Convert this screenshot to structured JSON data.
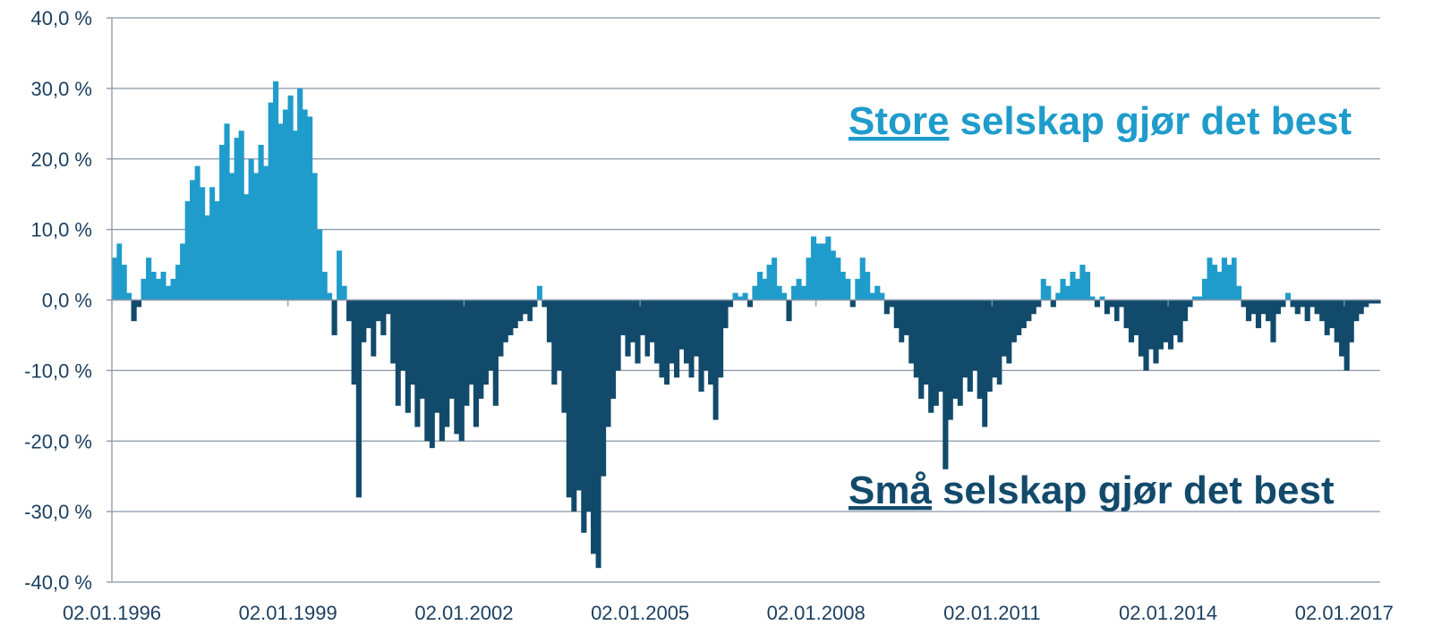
{
  "chart_data": {
    "type": "area",
    "annotations": [
      {
        "underlined": "Store",
        "text": "selskap gjør det best",
        "color": "#1f9ccb"
      },
      {
        "underlined": "Små",
        "text": "selskap gjør det best",
        "color": "#124a6b"
      }
    ],
    "colors": {
      "positive": "#1f9ccb",
      "negative": "#124a6b"
    },
    "grid": true,
    "xlim": [
      "1996-01-02",
      "2017-08-14"
    ],
    "xticks": [
      {
        "value": "1996-01-02",
        "label": "02.01.1996"
      },
      {
        "value": "1999-01-02",
        "label": "02.01.1999"
      },
      {
        "value": "2002-01-02",
        "label": "02.01.2002"
      },
      {
        "value": "2005-01-02",
        "label": "02.01.2005"
      },
      {
        "value": "2008-01-02",
        "label": "02.01.2008"
      },
      {
        "value": "2011-01-02",
        "label": "02.01.2011"
      },
      {
        "value": "2014-01-02",
        "label": "02.01.2014"
      },
      {
        "value": "2017-01-02",
        "label": "02.01.2017"
      }
    ],
    "ylim": [
      -40,
      40
    ],
    "yticks": [
      {
        "value": 40,
        "label": "40,0 %"
      },
      {
        "value": 30,
        "label": "30,0 %"
      },
      {
        "value": 20,
        "label": "20,0 %"
      },
      {
        "value": 10,
        "label": "10,0 %"
      },
      {
        "value": 0,
        "label": "0,0 %"
      },
      {
        "value": -10,
        "label": "-10,0 %"
      },
      {
        "value": -20,
        "label": "-20,0 %"
      },
      {
        "value": -30,
        "label": "-30,0 %"
      },
      {
        "value": -40,
        "label": "-40,0 %"
      }
    ],
    "x": [
      "1996-01-02",
      "1996-02-01",
      "1996-03-01",
      "1996-04-01",
      "1996-05-01",
      "1996-06-01",
      "1996-07-01",
      "1996-08-01",
      "1996-09-01",
      "1996-10-01",
      "1996-11-01",
      "1996-12-01",
      "1997-01-01",
      "1997-02-01",
      "1997-03-01",
      "1997-04-01",
      "1997-05-01",
      "1997-06-01",
      "1997-07-01",
      "1997-08-01",
      "1997-09-01",
      "1997-10-01",
      "1997-11-01",
      "1997-12-01",
      "1998-01-01",
      "1998-02-01",
      "1998-03-01",
      "1998-04-01",
      "1998-05-01",
      "1998-06-01",
      "1998-07-01",
      "1998-08-01",
      "1998-09-01",
      "1998-10-01",
      "1998-11-01",
      "1998-12-01",
      "1999-01-01",
      "1999-02-01",
      "1999-03-01",
      "1999-04-01",
      "1999-05-01",
      "1999-06-01",
      "1999-07-01",
      "1999-08-01",
      "1999-09-01",
      "1999-10-01",
      "1999-11-01",
      "1999-12-01",
      "2000-01-01",
      "2000-02-01",
      "2000-03-01",
      "2000-04-01",
      "2000-05-01",
      "2000-06-01",
      "2000-07-01",
      "2000-08-01",
      "2000-09-01",
      "2000-10-01",
      "2000-11-01",
      "2000-12-01",
      "2001-01-01",
      "2001-02-01",
      "2001-03-01",
      "2001-04-01",
      "2001-05-01",
      "2001-06-01",
      "2001-07-01",
      "2001-08-01",
      "2001-09-01",
      "2001-10-01",
      "2001-11-01",
      "2001-12-01",
      "2002-01-01",
      "2002-02-01",
      "2002-03-01",
      "2002-04-01",
      "2002-05-01",
      "2002-06-01",
      "2002-07-01",
      "2002-08-01",
      "2002-09-01",
      "2002-10-01",
      "2002-11-01",
      "2002-12-01",
      "2003-01-01",
      "2003-02-01",
      "2003-03-01",
      "2003-04-01",
      "2003-05-01",
      "2003-06-01",
      "2003-07-01",
      "2003-08-01",
      "2003-09-01",
      "2003-10-01",
      "2003-11-01",
      "2003-12-01",
      "2004-01-01",
      "2004-02-01",
      "2004-03-01",
      "2004-04-01",
      "2004-05-01",
      "2004-06-01",
      "2004-07-01",
      "2004-08-01",
      "2004-09-01",
      "2004-10-01",
      "2004-11-01",
      "2004-12-01",
      "2005-01-01",
      "2005-02-01",
      "2005-03-01",
      "2005-04-01",
      "2005-05-01",
      "2005-06-01",
      "2005-07-01",
      "2005-08-01",
      "2005-09-01",
      "2005-10-01",
      "2005-11-01",
      "2005-12-01",
      "2006-01-01",
      "2006-02-01",
      "2006-03-01",
      "2006-04-01",
      "2006-05-01",
      "2006-06-01",
      "2006-07-01",
      "2006-08-01",
      "2006-09-01",
      "2006-10-01",
      "2006-11-01",
      "2006-12-01",
      "2007-01-01",
      "2007-02-01",
      "2007-03-01",
      "2007-04-01",
      "2007-05-01",
      "2007-06-01",
      "2007-07-01",
      "2007-08-01",
      "2007-09-01",
      "2007-10-01",
      "2007-11-01",
      "2007-12-01",
      "2008-01-01",
      "2008-02-01",
      "2008-03-01",
      "2008-04-01",
      "2008-05-01",
      "2008-06-01",
      "2008-07-01",
      "2008-08-01",
      "2008-09-01",
      "2008-10-01",
      "2008-11-01",
      "2008-12-01",
      "2009-01-01",
      "2009-02-01",
      "2009-03-01",
      "2009-04-01",
      "2009-05-01",
      "2009-06-01",
      "2009-07-01",
      "2009-08-01",
      "2009-09-01",
      "2009-10-01",
      "2009-11-01",
      "2009-12-01",
      "2010-01-01",
      "2010-02-01",
      "2010-03-01",
      "2010-04-01",
      "2010-05-01",
      "2010-06-01",
      "2010-07-01",
      "2010-08-01",
      "2010-09-01",
      "2010-10-01",
      "2010-11-01",
      "2010-12-01",
      "2011-01-01",
      "2011-02-01",
      "2011-03-01",
      "2011-04-01",
      "2011-05-01",
      "2011-06-01",
      "2011-07-01",
      "2011-08-01",
      "2011-09-01",
      "2011-10-01",
      "2011-11-01",
      "2011-12-01",
      "2012-01-01",
      "2012-02-01",
      "2012-03-01",
      "2012-04-01",
      "2012-05-01",
      "2012-06-01",
      "2012-07-01",
      "2012-08-01",
      "2012-09-01",
      "2012-10-01",
      "2012-11-01",
      "2012-12-01",
      "2013-01-01",
      "2013-02-01",
      "2013-03-01",
      "2013-04-01",
      "2013-05-01",
      "2013-06-01",
      "2013-07-01",
      "2013-08-01",
      "2013-09-01",
      "2013-10-01",
      "2013-11-01",
      "2013-12-01",
      "2014-01-01",
      "2014-02-01",
      "2014-03-01",
      "2014-04-01",
      "2014-05-01",
      "2014-06-01",
      "2014-07-01",
      "2014-08-01",
      "2014-09-01",
      "2014-10-01",
      "2014-11-01",
      "2014-12-01",
      "2015-01-01",
      "2015-02-01",
      "2015-03-01",
      "2015-04-01",
      "2015-05-01",
      "2015-06-01",
      "2015-07-01",
      "2015-08-01",
      "2015-09-01",
      "2015-10-01",
      "2015-11-01",
      "2015-12-01",
      "2016-01-01",
      "2016-02-01",
      "2016-03-01",
      "2016-04-01",
      "2016-05-01",
      "2016-06-01",
      "2016-07-01",
      "2016-08-01",
      "2016-09-01",
      "2016-10-01",
      "2016-11-01",
      "2016-12-01",
      "2017-01-01",
      "2017-02-01",
      "2017-03-01",
      "2017-04-01",
      "2017-05-01",
      "2017-06-01",
      "2017-07-01"
    ],
    "values": [
      6,
      8,
      5,
      1,
      -3,
      -1,
      3,
      6,
      4,
      3,
      4,
      2,
      3,
      5,
      8,
      14,
      17,
      19,
      16,
      12,
      16,
      14,
      22,
      25,
      18,
      23,
      24,
      15,
      20,
      18,
      22,
      19,
      28,
      31,
      25,
      27,
      29,
      24,
      30,
      27,
      26,
      18,
      10,
      4,
      1,
      -5,
      7,
      2,
      -3,
      -12,
      -28,
      -6,
      -4,
      -8,
      -3,
      -5,
      -2,
      -9,
      -15,
      -10,
      -16,
      -12,
      -18,
      -14,
      -20,
      -21,
      -16,
      -20,
      -18,
      -14,
      -19,
      -20,
      -15,
      -12,
      -18,
      -14,
      -12,
      -10,
      -15,
      -8,
      -6,
      -5,
      -4,
      -3,
      -2,
      -3,
      -1,
      2,
      -1,
      -6,
      -12,
      -10,
      -16,
      -28,
      -30,
      -27,
      -33,
      -30,
      -36,
      -38,
      -25,
      -18,
      -14,
      -10,
      -5,
      -8,
      -6,
      -9,
      -5,
      -8,
      -6,
      -9,
      -11,
      -12,
      -9,
      -11,
      -7,
      -9,
      -11,
      -8,
      -13,
      -10,
      -12,
      -17,
      -11,
      -4,
      -1,
      1,
      0.5,
      1,
      -1,
      2,
      4,
      3,
      5,
      6,
      2,
      1,
      -3,
      2,
      3,
      2,
      6,
      9,
      8,
      8,
      9,
      7,
      6,
      4,
      3,
      -1,
      3,
      6,
      4,
      1,
      2,
      1,
      -2,
      -1,
      -4,
      -6,
      -5,
      -9,
      -11,
      -14,
      -12,
      -16,
      -15,
      -13,
      -24,
      -17,
      -14,
      -15,
      -11,
      -13,
      -10,
      -14,
      -18,
      -13,
      -11,
      -12,
      -8,
      -9,
      -6,
      -5,
      -4,
      -3,
      -2,
      -1,
      3,
      2,
      -1,
      1,
      3,
      2,
      4,
      3,
      5,
      4,
      0.5,
      -1,
      0.5,
      -2,
      -1,
      -3,
      -1,
      -4,
      -6,
      -5,
      -8,
      -10,
      -7,
      -9,
      -7,
      -6,
      -7,
      -5,
      -6,
      -3,
      -1,
      0.5,
      0.5,
      3,
      6,
      5,
      4,
      6,
      5,
      6,
      2,
      -1,
      -3,
      -2,
      -4,
      -2,
      -3,
      -6,
      -2,
      -1,
      1,
      -1,
      -2,
      -1,
      -3,
      -1,
      -2,
      -3,
      -5,
      -4,
      -6,
      -8,
      -10,
      -6,
      -3,
      -2,
      -1,
      -0.5,
      -0.5
    ]
  }
}
